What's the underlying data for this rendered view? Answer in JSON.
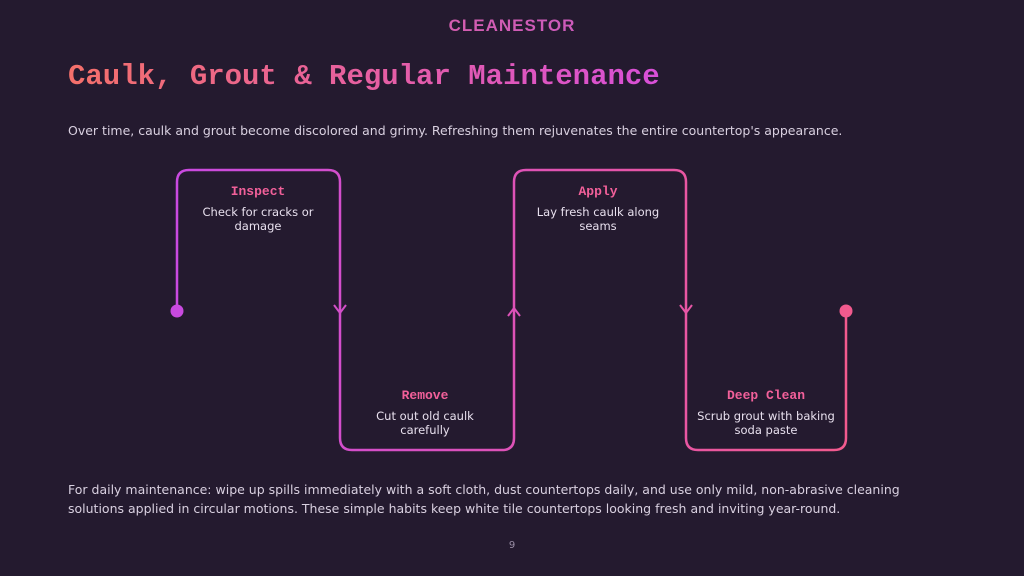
{
  "logo": "CLEANESTOR",
  "title": "Caulk, Grout & Regular Maintenance",
  "intro": "Over time, caulk and grout become discolored and grimy. Refreshing them rejuvenates the entire countertop's appearance.",
  "steps": [
    {
      "title": "Inspect",
      "description": "Check for cracks or damage"
    },
    {
      "title": "Remove",
      "description": "Cut out old caulk carefully"
    },
    {
      "title": "Apply",
      "description": "Lay fresh caulk along seams"
    },
    {
      "title": "Deep Clean",
      "description": "Scrub grout with baking soda paste"
    }
  ],
  "footer": "For daily maintenance: wipe up spills immediately with a soft cloth, dust countertops daily, and use only mild, non-abrasive cleaning solutions applied in circular motions. These simple habits keep white tile countertops looking fresh and inviting year-round.",
  "page_number": "9"
}
